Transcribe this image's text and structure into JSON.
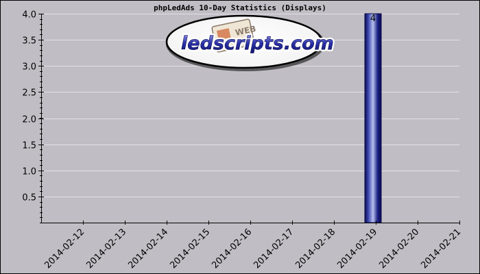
{
  "chart_data": {
    "type": "bar",
    "title": "phpLedAds 10-Day Statistics (Displays)",
    "xlabel": "",
    "ylabel": "",
    "categories": [
      "2014-02-12",
      "2014-02-13",
      "2014-02-14",
      "2014-02-15",
      "2014-02-16",
      "2014-02-17",
      "2014-02-18",
      "2014-02-19",
      "2014-02-20",
      "2014-02-21"
    ],
    "values": [
      0,
      0,
      0,
      0,
      0,
      0,
      0,
      4,
      0,
      0
    ],
    "data_labels": [
      "",
      "",
      "",
      "",
      "",
      "",
      "",
      "4",
      "",
      ""
    ],
    "y_ticks": [
      "0.5",
      "1.0",
      "1.5",
      "2.0",
      "2.5",
      "3.0",
      "3.5",
      "4.0"
    ],
    "ylim": [
      0,
      4
    ],
    "grid": "horizontal",
    "legend": "none",
    "colors": {
      "page_background": "#c0bec4",
      "plot_background": "#c0bec4",
      "gridline": "#e4e2e8",
      "axis": "#000000",
      "bar_edge": "#0a0a4e",
      "bar_center": "#b8c0ee",
      "bar_mid": "#3e4ab0",
      "bar_dark": "#1a2080"
    }
  },
  "watermark": {
    "text": "ledscripts.com",
    "badge_text": "WEB"
  }
}
